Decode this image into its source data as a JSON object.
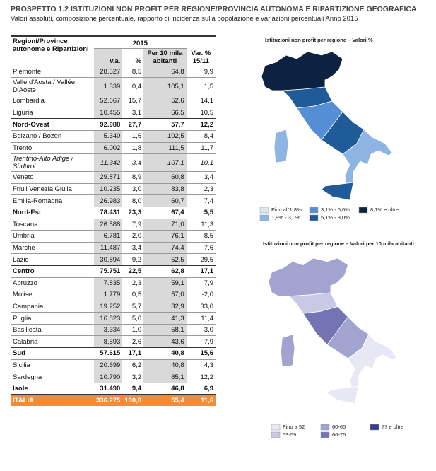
{
  "header": {
    "title": "PROSPETTO 1.2  ISTITUZIONI NON PROFIT PER REGIONE/PROVINCIA AUTONOMA E RIPARTIZIONE GEOGRAFICA",
    "subtitle": "Valori assoluti, composizione percentuale, rapporto di incidenza sulla popolazione e variazioni percentuali Anno 2015"
  },
  "table": {
    "columns": [
      "Regioni/Province autonome e Ripartizioni",
      "2015",
      "v.a.",
      "%",
      "Per 10 mila abitanti",
      "Var. % 15/11"
    ],
    "rows": [
      [
        "Piemonte",
        "28.527",
        "8,5",
        "64,8",
        "9,9"
      ],
      [
        "Valle d'Aosta / Vallée D'Aoste",
        "1.339",
        "0,4",
        "105,1",
        "1,5"
      ],
      [
        "Lombardia",
        "52.667",
        "15,7",
        "52,6",
        "14,1"
      ],
      [
        "Liguria",
        "10.455",
        "3,1",
        "66,5",
        "10,5"
      ],
      [
        "Nord-Ovest",
        "92.988",
        "27,7",
        "57,7",
        "12,2"
      ],
      [
        "Bolzano / Bozen",
        "5.340",
        "1,6",
        "102,5",
        "8,4"
      ],
      [
        "Trento",
        "6.002",
        "1,8",
        "111,5",
        "11,7"
      ],
      [
        "Trentino-Alto Adige / Südtirol",
        "11.342",
        "3,4",
        "107,1",
        "10,1"
      ],
      [
        "Veneto",
        "29.871",
        "8,9",
        "60,8",
        "3,4"
      ],
      [
        "Friuli Venezia Giulia",
        "10.235",
        "3,0",
        "83,8",
        "2,3"
      ],
      [
        "Emilia-Romagna",
        "26.983",
        "8,0",
        "60,7",
        "7,4"
      ],
      [
        "Nord-Est",
        "78.431",
        "23,3",
        "67,4",
        "5,5"
      ],
      [
        "Toscana",
        "26.588",
        "7,9",
        "71,0",
        "11,3"
      ],
      [
        "Umbria",
        "6.781",
        "2,0",
        "76,1",
        "8,5"
      ],
      [
        "Marche",
        "11.487",
        "3,4",
        "74,4",
        "7,6"
      ],
      [
        "Lazio",
        "30.894",
        "9,2",
        "52,5",
        "29,5"
      ],
      [
        "Centro",
        "75.751",
        "22,5",
        "62,8",
        "17,1"
      ],
      [
        "Abruzzo",
        "7.835",
        "2,3",
        "59,1",
        "7,9"
      ],
      [
        "Molise",
        "1.779",
        "0,5",
        "57,0",
        "-2,0"
      ],
      [
        "Campania",
        "19.252",
        "5,7",
        "32,9",
        "33,0"
      ],
      [
        "Puglia",
        "16.823",
        "5,0",
        "41,3",
        "11,4"
      ],
      [
        "Basilicata",
        "3.334",
        "1,0",
        "58,1",
        "3,0"
      ],
      [
        "Calabria",
        "8.593",
        "2,6",
        "43,6",
        "7,9"
      ],
      [
        "Sud",
        "57.615",
        "17,1",
        "40,8",
        "15,6"
      ],
      [
        "Sicilia",
        "20.699",
        "6,2",
        "40,8",
        "4,3"
      ],
      [
        "Sardegna",
        "10.790",
        "3,2",
        "65,1",
        "12,2"
      ],
      [
        "Isole",
        "31.490",
        "9,4",
        "46,8",
        "6,9"
      ],
      [
        "ITALIA",
        "336.275",
        "100,0",
        "55,4",
        "11,6"
      ]
    ]
  },
  "maps": [
    {
      "title": "Istituzioni non profit per regione – Valori %",
      "legend": [
        {
          "label": "Fino all'1,8%",
          "color": "#dce6f2"
        },
        {
          "label": "1,9% - 3,0%",
          "color": "#8eb4e3"
        },
        {
          "label": "3,1% - 5,0%",
          "color": "#558ed5"
        },
        {
          "label": "5,1% - 8,0%",
          "color": "#1f5a99"
        },
        {
          "label": "8,1% e oltre",
          "color": "#0d2240"
        }
      ]
    },
    {
      "title": "Istituzioni non profit per regione – Valori per 10 mila abitanti",
      "legend": [
        {
          "label": "Fino a 52",
          "color": "#e8e8f4"
        },
        {
          "label": "53-59",
          "color": "#c9c9e6"
        },
        {
          "label": "60-65",
          "color": "#a3a3d0"
        },
        {
          "label": "66-76",
          "color": "#7474b4"
        },
        {
          "label": "77 e oltre",
          "color": "#3c3c8c"
        }
      ]
    }
  ]
}
